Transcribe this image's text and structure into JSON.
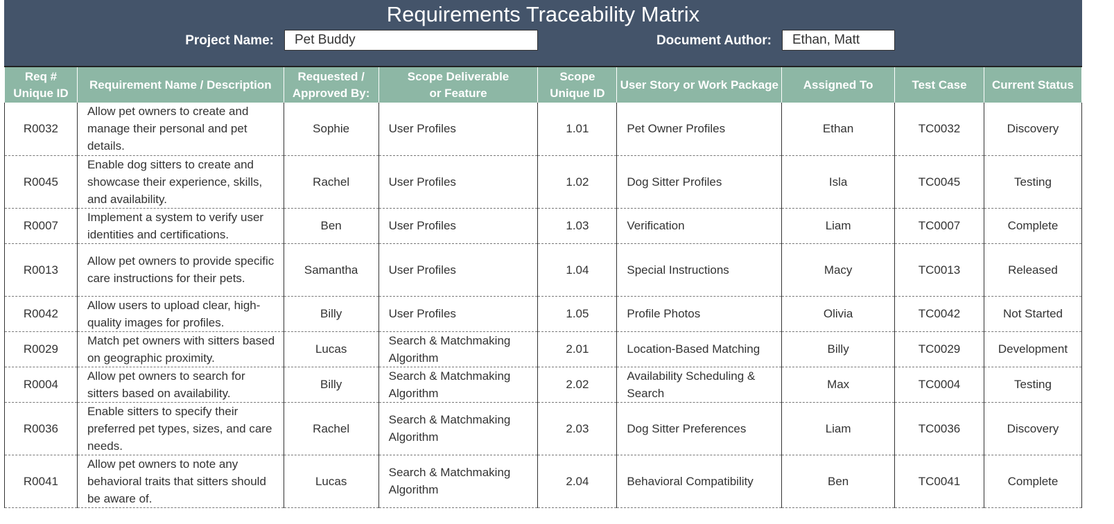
{
  "header": {
    "title": "Requirements Traceability Matrix",
    "project_label": "Project Name:",
    "project_name": "Pet Buddy",
    "author_label": "Document Author:",
    "author": "Ethan, Matt"
  },
  "table": {
    "columns": [
      "Req #\nUnique ID",
      "Requirement Name / Description",
      "Requested /\nApproved By:",
      "Scope Deliverable\nor Feature",
      "Scope\nUnique ID",
      "User Story or Work Package",
      "Assigned To",
      "Test Case",
      "Current Status"
    ],
    "rows": [
      [
        "R0032",
        "Allow pet owners to create and manage their personal and pet details.",
        "Sophie",
        "User Profiles",
        "1.01",
        "Pet Owner Profiles",
        "Ethan",
        "TC0032",
        "Discovery"
      ],
      [
        "R0045",
        "Enable dog sitters to create and showcase their experience, skills, and availability.",
        "Rachel",
        "User Profiles",
        "1.02",
        "Dog Sitter Profiles",
        "Isla",
        "TC0045",
        "Testing"
      ],
      [
        "R0007",
        "Implement a system to verify user identities and certifications.",
        "Ben",
        "User Profiles",
        "1.03",
        "Verification",
        "Liam",
        "TC0007",
        "Complete"
      ],
      [
        "R0013",
        "Allow pet owners to provide specific care instructions for their pets.",
        "Samantha",
        "User Profiles",
        "1.04",
        "Special Instructions",
        "Macy",
        "TC0013",
        "Released"
      ],
      [
        "R0042",
        "Allow users to upload clear, high-quality images for profiles.",
        "Billy",
        "User Profiles",
        "1.05",
        "Profile Photos",
        "Olivia",
        "TC0042",
        "Not Started"
      ],
      [
        "R0029",
        "Match pet owners with sitters based on geographic proximity.",
        "Lucas",
        "Search & Matchmaking Algorithm",
        "2.01",
        "Location-Based Matching",
        "Billy",
        "TC0029",
        "Development"
      ],
      [
        "R0004",
        "Allow pet owners to search for sitters based on availability.",
        "Billy",
        "Search & Matchmaking Algorithm",
        "2.02",
        "Availability Scheduling & Search",
        "Max",
        "TC0004",
        "Testing"
      ],
      [
        "R0036",
        "Enable sitters to specify their preferred pet types, sizes, and care needs.",
        "Rachel",
        "Search & Matchmaking Algorithm",
        "2.03",
        "Dog Sitter Preferences",
        "Liam",
        "TC0036",
        "Discovery"
      ],
      [
        "R0041",
        "Allow pet owners to note any behavioral traits that sitters should be aware of.",
        "Lucas",
        "Search & Matchmaking Algorithm",
        "2.04",
        "Behavioral Compatibility",
        "Ben",
        "TC0041",
        "Complete"
      ]
    ]
  }
}
